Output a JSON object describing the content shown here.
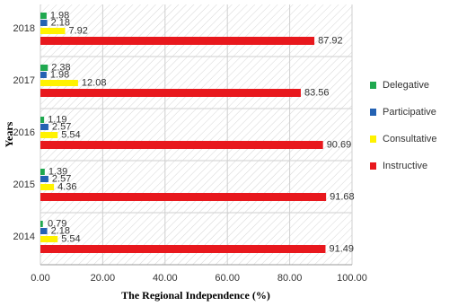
{
  "chart_data": {
    "type": "hbar",
    "x_label": "The Regional Independence (%)",
    "y_label": "Years",
    "categories": [
      "2018",
      "2017",
      "2016",
      "2015",
      "2014"
    ],
    "series": [
      {
        "name": "Delegative",
        "color": "#1fa84f",
        "values": [
          1.98,
          2.38,
          1.19,
          1.39,
          0.79
        ]
      },
      {
        "name": "Participative",
        "color": "#2462b3",
        "values": [
          2.18,
          1.98,
          2.57,
          2.57,
          2.18
        ]
      },
      {
        "name": "Consultative",
        "color": "#fff200",
        "values": [
          7.92,
          12.08,
          5.54,
          4.36,
          5.54
        ]
      },
      {
        "name": "Instructive",
        "color": "#e8181d",
        "values": [
          87.92,
          83.56,
          90.69,
          91.68,
          91.49
        ]
      }
    ],
    "xlim": [
      0,
      100
    ],
    "xticks": [
      {
        "value": 0,
        "label": "0.00"
      },
      {
        "value": 20,
        "label": "20.00"
      },
      {
        "value": 40,
        "label": "40.00"
      },
      {
        "value": 60,
        "label": "60.00"
      },
      {
        "value": 80,
        "label": "80.00"
      },
      {
        "value": 100,
        "label": "100.00"
      }
    ],
    "grid": true,
    "legend_position": "right"
  }
}
